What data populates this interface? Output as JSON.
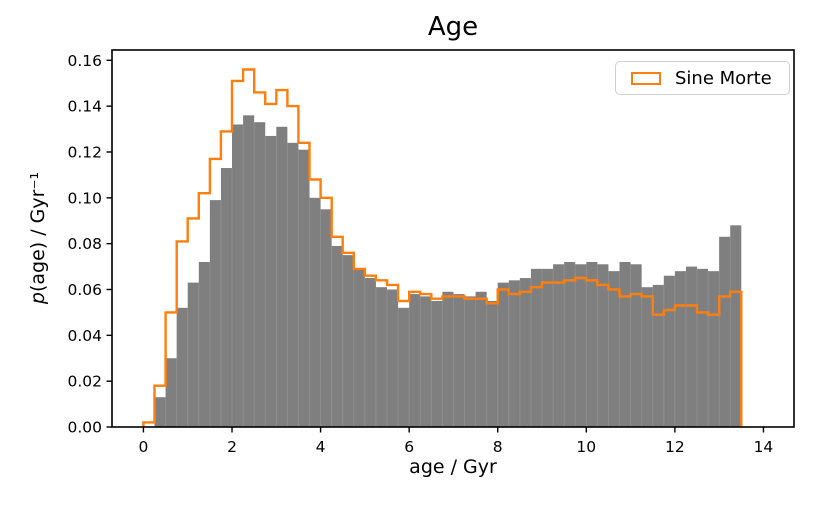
{
  "chart_data": {
    "type": "bar",
    "subtype": "overlaid histograms",
    "title": "Age",
    "xlabel": "age / Gyr",
    "ylabel": "p(age) / Gyr⁻¹",
    "ylabel_prefix": "p",
    "ylabel_suffix": "(age) / Gyr⁻¹",
    "xlim": [
      -0.71,
      14.69
    ],
    "ylim": [
      0,
      0.1645
    ],
    "xticks": [
      0,
      2,
      4,
      6,
      8,
      10,
      12,
      14
    ],
    "ytick_labels": [
      "0.00",
      "0.02",
      "0.04",
      "0.06",
      "0.08",
      "0.10",
      "0.12",
      "0.14",
      "0.16"
    ],
    "grid": false,
    "bin_start": 0,
    "bin_width": 0.25,
    "n_bins": 54,
    "legend": {
      "position": "upper right",
      "entries": [
        {
          "label": "Sine Morte",
          "color": "#ff7f0e",
          "style": "step-outline"
        }
      ]
    },
    "series": [
      {
        "name": "",
        "render": "filled-histogram",
        "color": "#7f7f7f",
        "values": [
          0.0,
          0.013,
          0.03,
          0.052,
          0.063,
          0.072,
          0.099,
          0.113,
          0.132,
          0.136,
          0.133,
          0.127,
          0.131,
          0.124,
          0.121,
          0.1,
          0.095,
          0.079,
          0.075,
          0.069,
          0.065,
          0.061,
          0.06,
          0.052,
          0.058,
          0.057,
          0.055,
          0.059,
          0.058,
          0.057,
          0.059,
          0.055,
          0.063,
          0.064,
          0.065,
          0.069,
          0.069,
          0.071,
          0.072,
          0.071,
          0.072,
          0.071,
          0.068,
          0.072,
          0.071,
          0.061,
          0.062,
          0.066,
          0.068,
          0.07,
          0.069,
          0.068,
          0.083,
          0.088
        ]
      },
      {
        "name": "Sine Morte",
        "render": "step-histogram",
        "color": "#ff7f0e",
        "values": [
          0.002,
          0.018,
          0.05,
          0.081,
          0.091,
          0.102,
          0.117,
          0.129,
          0.151,
          0.156,
          0.146,
          0.141,
          0.147,
          0.14,
          0.124,
          0.108,
          0.1,
          0.083,
          0.076,
          0.069,
          0.066,
          0.064,
          0.062,
          0.055,
          0.059,
          0.058,
          0.056,
          0.057,
          0.057,
          0.056,
          0.056,
          0.054,
          0.06,
          0.058,
          0.059,
          0.061,
          0.063,
          0.063,
          0.064,
          0.065,
          0.064,
          0.062,
          0.06,
          0.057,
          0.058,
          0.057,
          0.049,
          0.051,
          0.053,
          0.053,
          0.05,
          0.049,
          0.057,
          0.059
        ]
      }
    ]
  },
  "colors": {
    "hist_fill": "#7f7f7f",
    "hist_edge": "#8f8f8f",
    "line": "#ff7f0e",
    "spine": "#000000",
    "background": "#ffffff"
  }
}
